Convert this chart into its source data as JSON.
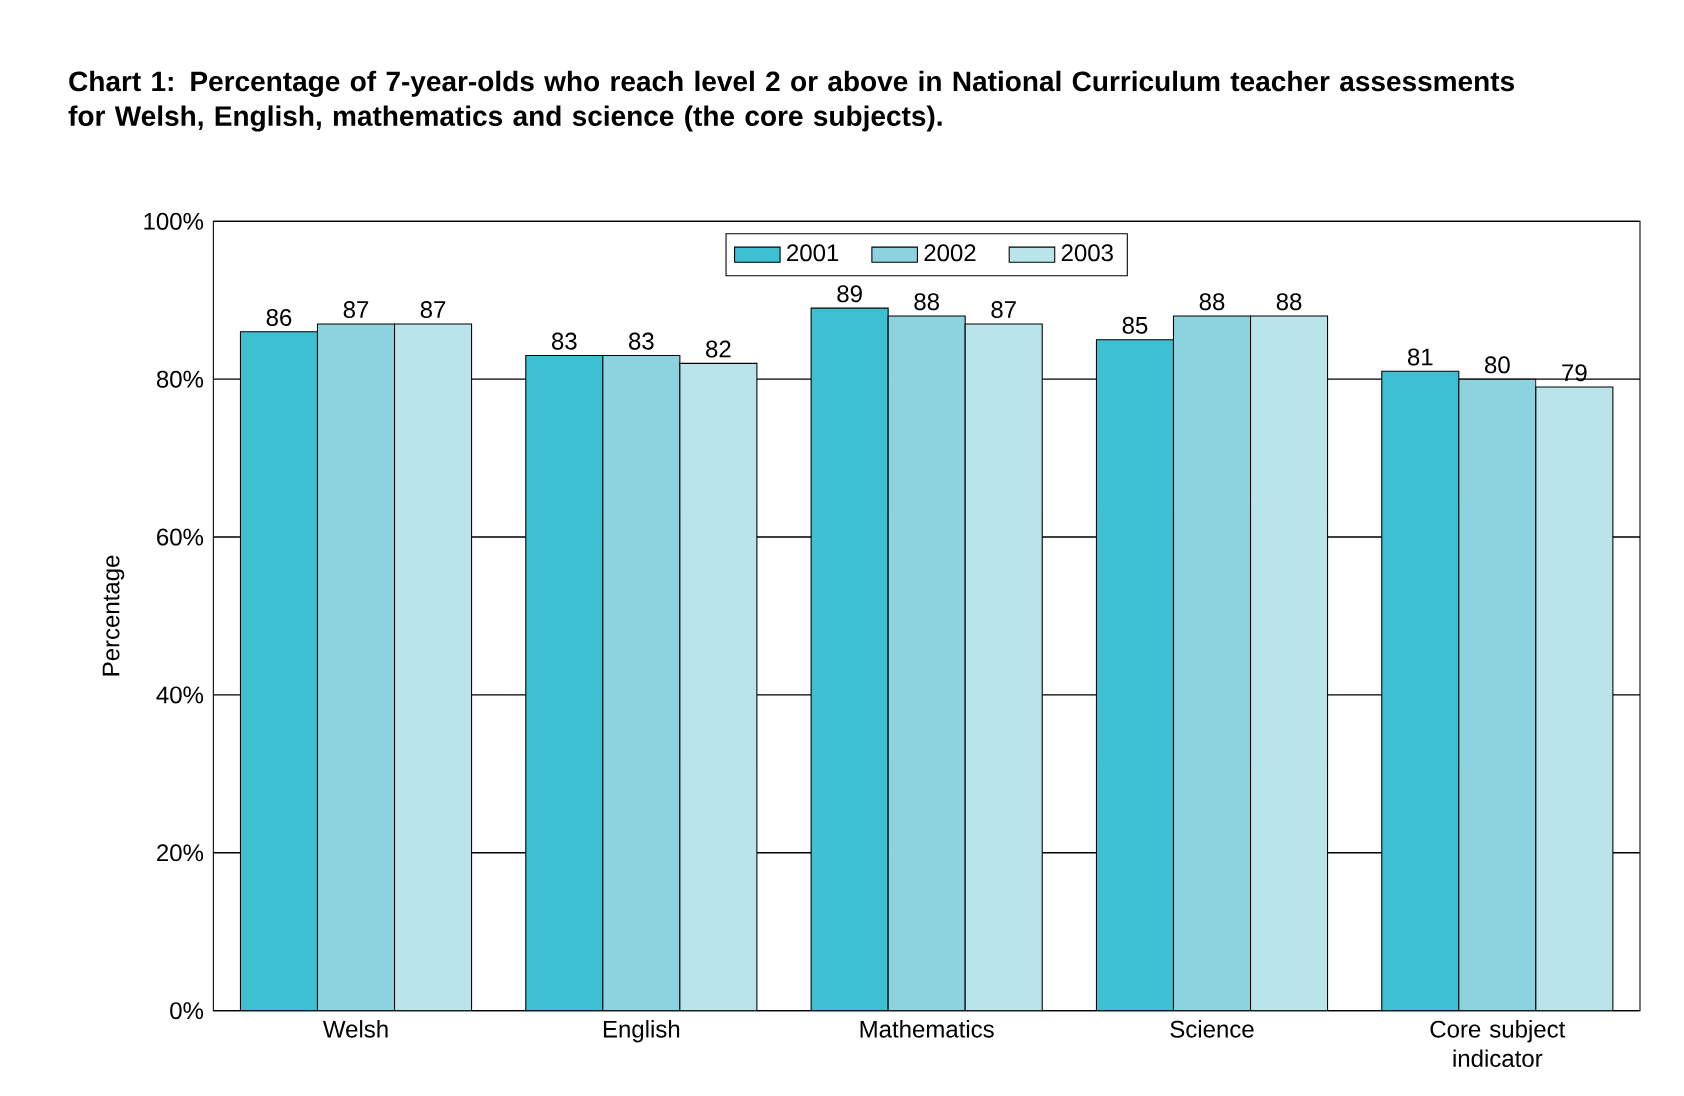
{
  "chart_data": {
    "type": "bar",
    "title": "**Chart 1:** **Percentage of 7-year-olds who reach level 2 or above in National Curriculum teacher assessments for Welsh, English, mathematics and science (the core subjects).**",
    "ylabel": "Percentage",
    "categories": [
      "Welsh",
      "English",
      "Mathematics",
      "Science",
      "Core subject indicator"
    ],
    "series": [
      {
        "name": "2001",
        "color": "#3cc0d2",
        "values": [
          86,
          83,
          89,
          85,
          81
        ]
      },
      {
        "name": "2002",
        "color": "#8cd3df",
        "values": [
          87,
          83,
          88,
          88,
          80
        ]
      },
      {
        "name": "2003",
        "color": "#b9e4ea",
        "values": [
          87,
          82,
          87,
          88,
          79
        ]
      }
    ],
    "ylim": [
      0,
      100
    ],
    "yticks": [
      {
        "value": 0,
        "label": "0%"
      },
      {
        "value": 20,
        "label": "20%"
      },
      {
        "value": 40,
        "label": "40%"
      },
      {
        "value": 60,
        "label": "60%"
      },
      {
        "value": 80,
        "label": "80%"
      },
      {
        "value": 100,
        "label": "100%"
      }
    ],
    "grid": "y",
    "legend": "top",
    "data_labels": true
  }
}
